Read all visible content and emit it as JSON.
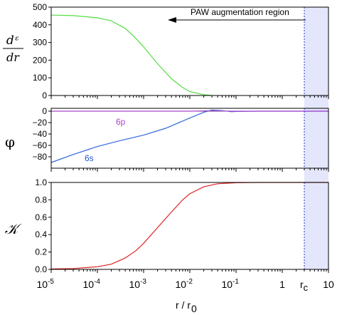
{
  "chart_data": [
    {
      "type": "line",
      "panel": "top",
      "ylabel_numerator": "dᵋ",
      "ylabel_denominator": "dr",
      "x_scale": "log",
      "xlim": [
        1e-05,
        10
      ],
      "ylim": [
        0,
        500
      ],
      "yticks": [
        "0",
        "100",
        "200",
        "300",
        "400",
        "500"
      ],
      "grid": false,
      "annotation": "PAW augmentation region",
      "series": [
        {
          "color": "#55dd44",
          "x": [
            1e-05,
            3e-05,
            0.0001,
            0.0002,
            0.0004,
            0.0007,
            0.001,
            0.002,
            0.004,
            0.007,
            0.01,
            0.02,
            0.03
          ],
          "y": [
            455,
            452,
            440,
            422,
            380,
            320,
            275,
            180,
            95,
            45,
            22,
            5,
            0
          ]
        }
      ]
    },
    {
      "type": "line",
      "panel": "middle",
      "ylabel": "φ",
      "x_scale": "log",
      "xlim": [
        1e-05,
        10
      ],
      "ylim": [
        -100,
        5
      ],
      "yticks": [
        "0",
        "−20",
        "−40",
        "−60",
        "−80"
      ],
      "grid": false,
      "series": [
        {
          "name": "6s",
          "color": "#3366dd",
          "x": [
            1e-05,
            3e-05,
            0.0001,
            0.0003,
            0.001,
            0.003,
            0.01,
            0.02,
            0.03,
            0.05,
            0.08,
            0.1,
            0.3,
            1,
            10
          ],
          "y": [
            -90,
            -76,
            -62,
            -52,
            -42,
            -30,
            -12,
            -2,
            2,
            1,
            -1,
            -0.5,
            0,
            0,
            0
          ]
        },
        {
          "name": "6p",
          "color": "#aa44cc",
          "x": [
            1e-05,
            0.001,
            0.01,
            0.03,
            0.05,
            0.1,
            1,
            10
          ],
          "y": [
            0,
            0,
            0,
            0.8,
            0.3,
            0,
            0,
            0
          ]
        }
      ]
    },
    {
      "type": "line",
      "panel": "bottom",
      "ylabel": "𝒦",
      "x_scale": "log",
      "xlim": [
        1e-05,
        10
      ],
      "ylim": [
        0,
        1
      ],
      "yticks": [
        "0.0",
        "0.2",
        "0.4",
        "0.6",
        "0.8",
        "1.0"
      ],
      "xticks": [
        {
          "base": "10",
          "exp": "-5"
        },
        {
          "base": "10",
          "exp": "-4"
        },
        {
          "base": "10",
          "exp": "-3"
        },
        {
          "base": "10",
          "exp": "-2"
        },
        {
          "base": "10",
          "exp": "-1"
        },
        {
          "base": "1",
          "exp": ""
        },
        {
          "base": "10",
          "exp": ""
        }
      ],
      "xlabel": "r / r",
      "xlabel_sub": "0",
      "marker_label": "r",
      "marker_label_sub": "c",
      "marker_x": 3,
      "reference_line_y": 1.0,
      "grid": false,
      "series": [
        {
          "color": "#dd2222",
          "x": [
            1e-05,
            3e-05,
            0.0001,
            0.0002,
            0.0004,
            0.0007,
            0.001,
            0.002,
            0.004,
            0.007,
            0.01,
            0.02,
            0.04,
            0.1,
            0.3,
            1,
            10
          ],
          "y": [
            0.005,
            0.01,
            0.03,
            0.06,
            0.13,
            0.22,
            0.3,
            0.48,
            0.66,
            0.8,
            0.87,
            0.95,
            0.985,
            0.997,
            1.0,
            1.0,
            1.0
          ]
        }
      ]
    }
  ],
  "colors": {
    "augmentation_shade": "#e4e6fb",
    "marker_line": "#2233cc",
    "marker_label": "#2233cc",
    "label_6s": "#2255cc",
    "label_6p": "#aa44cc"
  }
}
